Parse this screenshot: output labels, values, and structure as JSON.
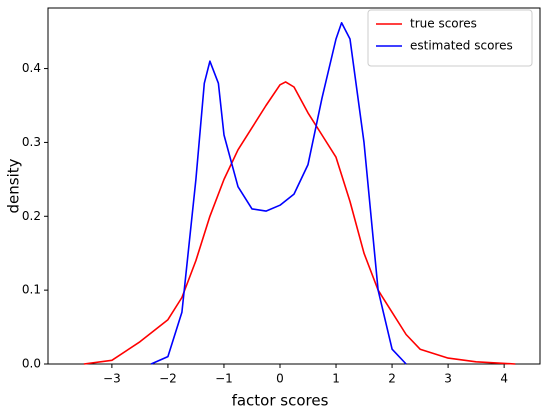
{
  "chart_data": {
    "type": "line",
    "xlabel": "factor scores",
    "ylabel": "density",
    "xlim": [
      -4.14,
      4.64
    ],
    "ylim": [
      0,
      0.482
    ],
    "xticks": [
      {
        "value": -3,
        "label": "−3"
      },
      {
        "value": -2,
        "label": "−2"
      },
      {
        "value": -1,
        "label": "−1"
      },
      0,
      1,
      2,
      3,
      4
    ],
    "yticks": [
      {
        "value": 0,
        "label": "0.0"
      },
      0.1,
      0.2,
      0.3,
      0.4
    ],
    "legend": "upper right",
    "series": [
      {
        "name": "true scores",
        "color": "#ff0000",
        "x": [
          -3.5,
          -3,
          -2.5,
          -2,
          -1.75,
          -1.5,
          -1.25,
          -1,
          -0.75,
          -0.5,
          -0.25,
          0,
          0.1,
          0.25,
          0.5,
          0.75,
          1,
          1.25,
          1.5,
          1.75,
          2,
          2.25,
          2.5,
          3,
          3.5,
          4.2
        ],
        "values": [
          0.0,
          0.005,
          0.03,
          0.06,
          0.09,
          0.14,
          0.2,
          0.25,
          0.29,
          0.32,
          0.35,
          0.378,
          0.382,
          0.375,
          0.34,
          0.31,
          0.28,
          0.22,
          0.15,
          0.1,
          0.07,
          0.04,
          0.02,
          0.008,
          0.003,
          0.0
        ]
      },
      {
        "name": "estimated scores",
        "color": "#0000ff",
        "x": [
          -2.3,
          -2,
          -1.75,
          -1.5,
          -1.35,
          -1.25,
          -1.1,
          -1,
          -0.75,
          -0.5,
          -0.25,
          0,
          0.25,
          0.5,
          0.75,
          1,
          1.1,
          1.25,
          1.5,
          1.75,
          2,
          2.25
        ],
        "values": [
          0.0,
          0.01,
          0.07,
          0.25,
          0.38,
          0.41,
          0.38,
          0.31,
          0.24,
          0.21,
          0.207,
          0.215,
          0.23,
          0.27,
          0.36,
          0.44,
          0.462,
          0.44,
          0.3,
          0.1,
          0.02,
          0.0
        ]
      }
    ]
  }
}
